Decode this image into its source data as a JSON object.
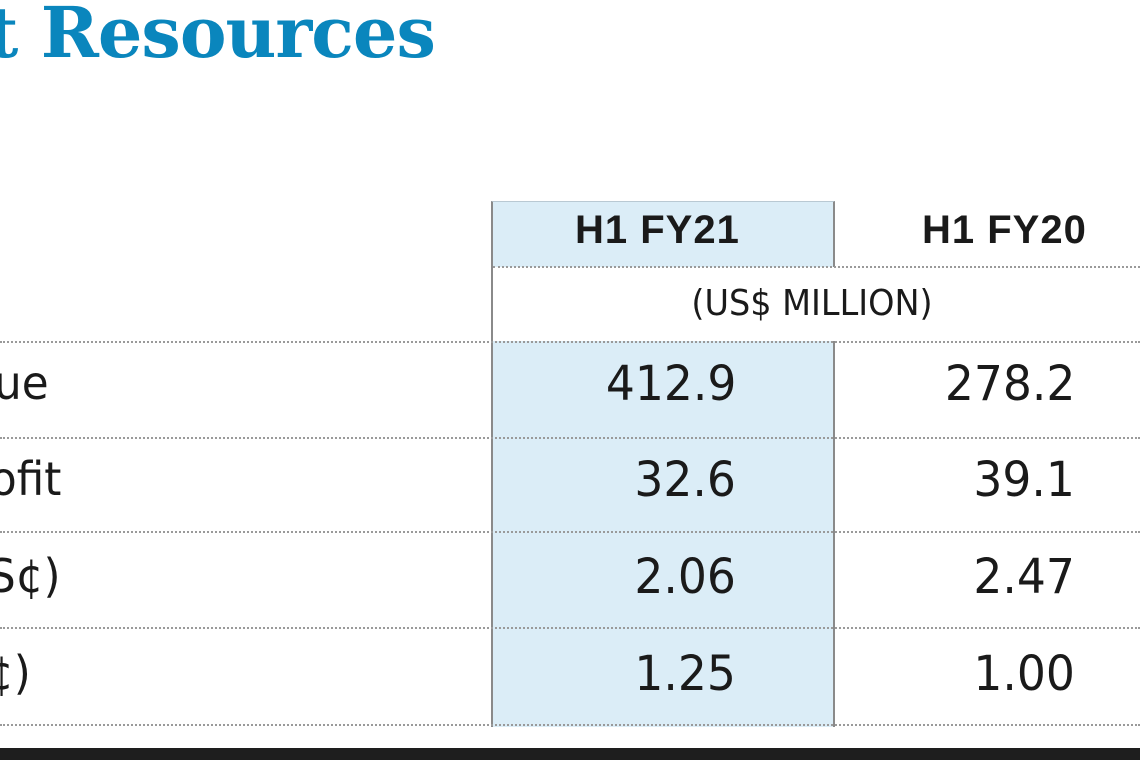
{
  "title": "t Resources",
  "columns": {
    "h1_fy21": "H1 FY21",
    "h1_fy20": "H1 FY20",
    "unit": "(US$ MILLION)"
  },
  "rows": [
    {
      "label": "ue",
      "fy21": "412.9",
      "fy20": "278.2"
    },
    {
      "label": "ofit",
      "fy21": "32.6",
      "fy20": "39.1"
    },
    {
      "label": "S¢)",
      "fy21": "2.06",
      "fy20": "2.47"
    },
    {
      "label": "¢)",
      "fy21": "1.25",
      "fy20": "1.00"
    }
  ],
  "colors": {
    "title": "#0a86bd",
    "highlight_column": "#dbedf7",
    "bottom_bar": "#1e1e1e"
  }
}
